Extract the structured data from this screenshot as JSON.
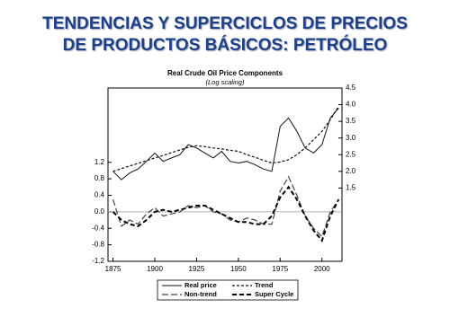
{
  "slide_title": [
    "TENDENCIAS Y SUPERCICLOS DE PRECIOS",
    "DE PRODUCTOS BÁSICOS: PETRÓLEO"
  ],
  "chart_data": {
    "type": "line",
    "title": "Real Crude Oil Price Components",
    "subtitle": "(Log scaling)",
    "x": [
      1875,
      1880,
      1885,
      1890,
      1895,
      1900,
      1905,
      1910,
      1915,
      1920,
      1925,
      1930,
      1935,
      1940,
      1945,
      1950,
      1955,
      1960,
      1965,
      1970,
      1975,
      1980,
      1985,
      1990,
      1995,
      2000,
      2005,
      2010
    ],
    "xlim": [
      1872,
      2012
    ],
    "xticks": [
      1875,
      1900,
      1925,
      1950,
      1975,
      2000
    ],
    "ylim": [
      -1.2,
      3.0
    ],
    "yticks": [
      -1.2,
      -0.8,
      -0.4,
      {
        "value": 0,
        "label": "0.0"
      },
      0.4,
      0.8,
      1.2
    ],
    "y2lim": [
      -0.7,
      4.5
    ],
    "y2ticks": [
      1.5,
      {
        "value": 2,
        "label": "2.0"
      },
      2.5,
      {
        "value": 3,
        "label": "3.0"
      },
      3.5,
      {
        "value": 4,
        "label": "4.0"
      },
      4.5
    ],
    "zero_line": true,
    "legend": "bottom",
    "series": [
      {
        "name": "Real price",
        "color": "#111111",
        "dash": "solid",
        "axis": "y2",
        "values": [
          2.0,
          1.75,
          1.95,
          2.07,
          2.3,
          2.55,
          2.3,
          2.4,
          2.5,
          2.8,
          2.7,
          2.55,
          2.4,
          2.6,
          2.3,
          2.25,
          2.3,
          2.2,
          2.07,
          2.0,
          3.35,
          3.6,
          3.2,
          2.7,
          2.55,
          2.8,
          3.6,
          3.9
        ]
      },
      {
        "name": "Trend",
        "color": "#111111",
        "dash": "short",
        "axis": "y2",
        "values": [
          2.0,
          2.08,
          2.16,
          2.24,
          2.32,
          2.4,
          2.48,
          2.56,
          2.64,
          2.72,
          2.77,
          2.74,
          2.7,
          2.67,
          2.63,
          2.6,
          2.5,
          2.42,
          2.33,
          2.25,
          2.28,
          2.35,
          2.5,
          2.7,
          2.95,
          3.2,
          3.55,
          3.95
        ]
      },
      {
        "name": "Non-trend",
        "color": "#444444",
        "dash": "long",
        "values": [
          0.3,
          -0.35,
          -0.2,
          -0.3,
          -0.05,
          0.1,
          -0.1,
          -0.05,
          0.0,
          0.15,
          0.1,
          0.15,
          0.0,
          -0.05,
          -0.2,
          -0.25,
          -0.15,
          -0.2,
          -0.3,
          -0.3,
          0.5,
          0.85,
          0.4,
          -0.1,
          -0.4,
          -0.6,
          0.0,
          0.3
        ]
      },
      {
        "name": "Super Cycle",
        "color": "#000000",
        "dash": "bold",
        "values": [
          0.0,
          -0.2,
          -0.3,
          -0.35,
          -0.2,
          0.0,
          0.05,
          0.0,
          0.05,
          0.1,
          0.15,
          0.15,
          0.05,
          -0.05,
          -0.15,
          -0.25,
          -0.25,
          -0.3,
          -0.3,
          -0.1,
          0.35,
          0.6,
          0.3,
          -0.1,
          -0.45,
          -0.7,
          -0.1,
          0.3
        ]
      }
    ]
  }
}
